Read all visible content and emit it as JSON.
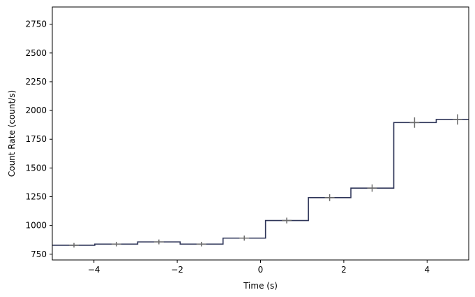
{
  "chart_data": {
    "type": "line",
    "style": "step",
    "xlabel": "Time (s)",
    "ylabel": "Count Rate (count/s)",
    "xlim": [
      -5,
      5
    ],
    "ylim": [
      700,
      2900
    ],
    "x_ticks": [
      -4,
      -2,
      0,
      2,
      4
    ],
    "x_tick_labels": [
      "−4",
      "−2",
      "0",
      "2",
      "4"
    ],
    "y_ticks": [
      750,
      1000,
      1250,
      1500,
      1750,
      2000,
      2250,
      2500,
      2750
    ],
    "y_tick_labels": [
      "750",
      "1000",
      "1250",
      "1500",
      "1750",
      "2000",
      "2250",
      "2500",
      "2750"
    ],
    "grid": false,
    "line_color": "#2e3558",
    "errorbar_color": "#6b6b6b",
    "bins": [
      {
        "x_start": -5.0,
        "x_end": -3.98,
        "x_center": -4.48,
        "y": 828,
        "y_err": 20
      },
      {
        "x_start": -3.98,
        "x_end": -2.95,
        "x_center": -3.46,
        "y": 838,
        "y_err": 20
      },
      {
        "x_start": -2.95,
        "x_end": -1.93,
        "x_center": -2.44,
        "y": 857,
        "y_err": 21
      },
      {
        "x_start": -1.93,
        "x_end": -0.9,
        "x_center": -1.42,
        "y": 838,
        "y_err": 20
      },
      {
        "x_start": -0.9,
        "x_end": 0.12,
        "x_center": -0.39,
        "y": 890,
        "y_err": 22
      },
      {
        "x_start": 0.12,
        "x_end": 1.15,
        "x_center": 0.63,
        "y": 1043,
        "y_err": 25
      },
      {
        "x_start": 1.15,
        "x_end": 2.17,
        "x_center": 1.66,
        "y": 1242,
        "y_err": 30
      },
      {
        "x_start": 2.17,
        "x_end": 3.2,
        "x_center": 2.68,
        "y": 1325,
        "y_err": 32
      },
      {
        "x_start": 3.2,
        "x_end": 4.22,
        "x_center": 3.7,
        "y": 1895,
        "y_err": 45
      },
      {
        "x_start": 4.22,
        "x_end": 5.0,
        "x_center": 4.73,
        "y": 1922,
        "y_err": 45
      }
    ]
  }
}
